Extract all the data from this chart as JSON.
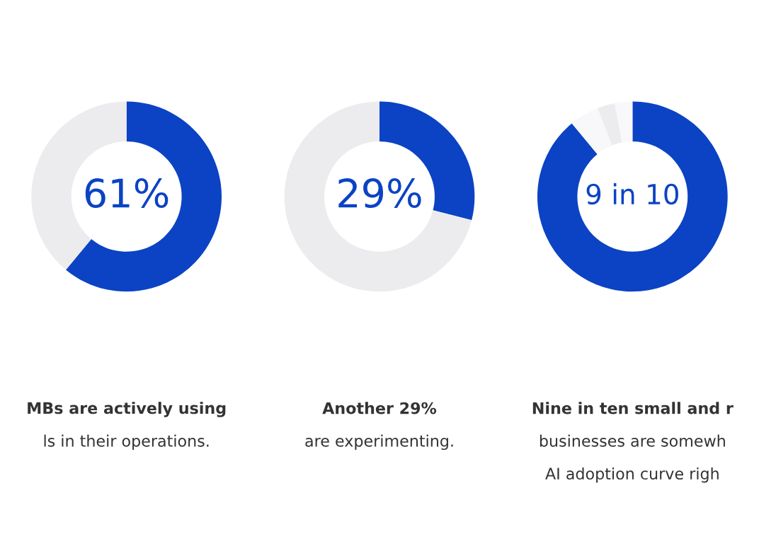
{
  "chart_data": [
    {
      "type": "donut",
      "categories": [
        null,
        null
      ],
      "values": [
        61,
        39
      ],
      "colors": [
        "#0b43c4",
        "#ececee"
      ],
      "annotations": [
        "61%",
        "MBs are actively using",
        "ls in their operations."
      ]
    },
    {
      "type": "donut",
      "categories": [
        null,
        null
      ],
      "values": [
        29,
        71
      ],
      "colors": [
        "#0b43c4",
        "#ececee"
      ],
      "annotations": [
        "29%",
        "Another 29%",
        "are experimenting."
      ]
    },
    {
      "type": "donut",
      "categories": [
        null,
        null,
        null,
        null
      ],
      "values": [
        89,
        5,
        3,
        3
      ],
      "colors": [
        "#0b43c4",
        "#f8f8fa",
        "#ececee",
        "#f8f8fa"
      ],
      "annotations": [
        "9 in 10",
        "Nine in ten small and r",
        "businesses are somewh",
        "AI adoption curve righ"
      ]
    }
  ]
}
